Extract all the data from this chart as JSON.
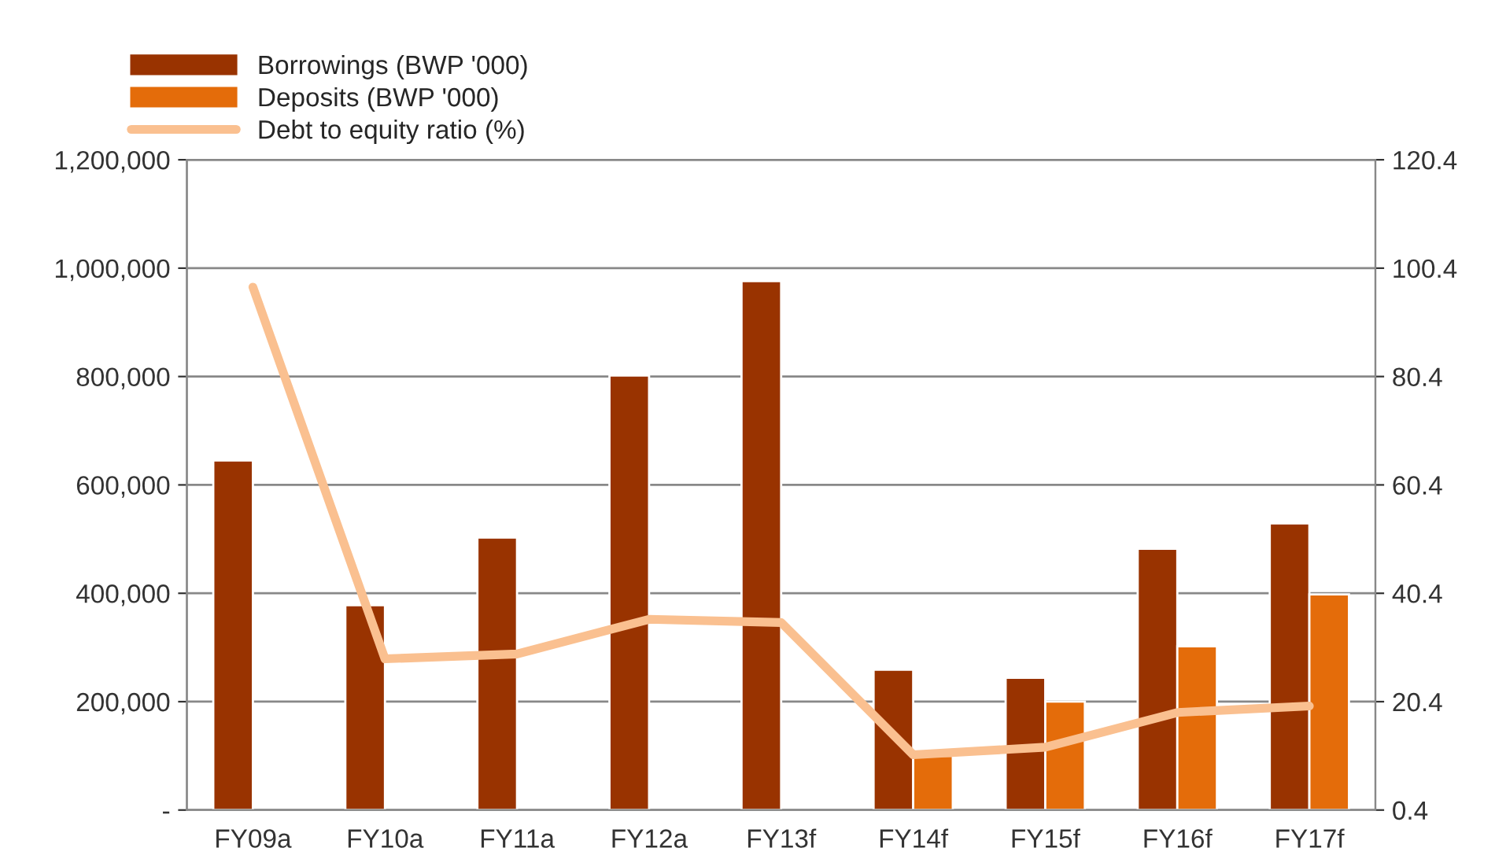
{
  "chart_data": {
    "type": "bar",
    "categories": [
      "FY09a",
      "FY10a",
      "FY11a",
      "FY12a",
      "FY13f",
      "FY14f",
      "FY15f",
      "FY16f",
      "FY17f"
    ],
    "series": [
      {
        "name": "Borrowings (BWP '000)",
        "color": "#993300",
        "values": [
          645000,
          378000,
          503000,
          802000,
          976000,
          259000,
          244000,
          482000,
          529000
        ]
      },
      {
        "name": "Deposits (BWP '000)",
        "color": "#e46c0a",
        "values": [
          null,
          null,
          null,
          null,
          null,
          100000,
          200000,
          302000,
          398000
        ]
      },
      {
        "name": "Debt to equity ratio (%)",
        "type": "line",
        "axis": "y2",
        "color": "#fac090",
        "values": [
          96.9,
          28.3,
          29.2,
          35.6,
          35.0,
          10.6,
          12.0,
          18.4,
          19.6
        ]
      }
    ],
    "ylim": [
      0,
      1200000
    ],
    "yticks": [
      {
        "value": 0,
        "label": "-"
      },
      {
        "value": 200000,
        "label": "200,000"
      },
      {
        "value": 400000,
        "label": "400,000"
      },
      {
        "value": 600000,
        "label": "600,000"
      },
      {
        "value": 800000,
        "label": "800,000"
      },
      {
        "value": 1000000,
        "label": "1,000,000"
      },
      {
        "value": 1200000,
        "label": "1,200,000"
      }
    ],
    "y2lim": [
      0.4,
      120.4
    ],
    "y2ticks": [
      0.4,
      20.4,
      40.4,
      60.4,
      80.4,
      100.4,
      120.4
    ],
    "grid": "y",
    "legend": "top left",
    "marker": "none",
    "line_style": "solid"
  }
}
